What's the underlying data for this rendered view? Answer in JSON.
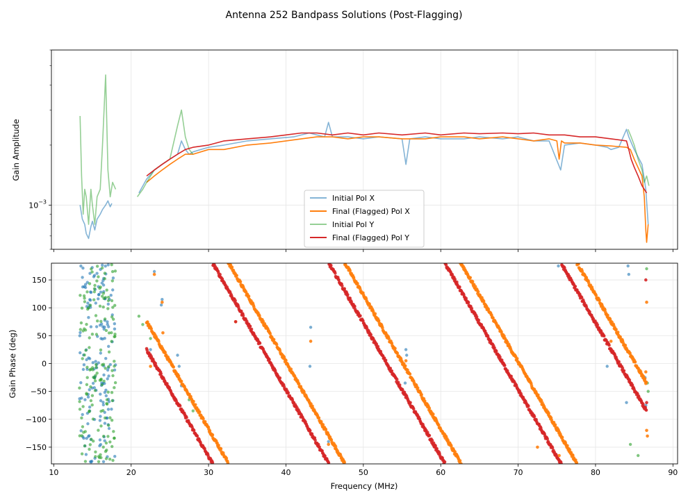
{
  "figure": {
    "title": "Antenna 252 Bandpass Solutions (Post-Flagging)"
  },
  "colors": {
    "initial_x": "#1f77b4",
    "final_x": "#ff7f0e",
    "initial_y": "#2ca02c",
    "final_y": "#d62728",
    "grid": "#e6e6e6"
  },
  "chart_data": [
    {
      "type": "line",
      "panel": "top",
      "ylabel": "Gain Amplitude",
      "yscale": "log",
      "ylim": [
        0.0006,
        0.006
      ],
      "xlim": [
        9.7,
        90.6
      ],
      "grid": true,
      "y_ticks": [
        {
          "value": 0.001,
          "base": "10",
          "exp": "−3"
        }
      ],
      "legend_position": "lower-center",
      "legend": [
        "Initial Pol X",
        "Final (Flagged) Pol X",
        "Initial Pol Y",
        "Final (Flagged) Pol Y"
      ],
      "series": [
        {
          "name": "Initial Pol X",
          "color": "#1f77b4",
          "opacity": 0.55,
          "segments": [
            {
              "x": [
                13.4,
                13.7,
                14.0,
                14.2,
                14.5,
                14.8,
                15.0,
                15.3,
                15.6,
                16.0,
                16.3,
                16.7,
                17.0,
                17.3,
                17.5
              ],
              "y": [
                0.001,
                0.00085,
                0.0008,
                0.00072,
                0.00068,
                0.00078,
                0.00083,
                0.00075,
                0.00085,
                0.0009,
                0.00095,
                0.001,
                0.00105,
                0.00098,
                0.00102
              ]
            },
            {
              "x": [
                21.0,
                22,
                23,
                24,
                25,
                26,
                26.5,
                27,
                27.5,
                28,
                29,
                30,
                32,
                35,
                38,
                41,
                43,
                45,
                45.5,
                46,
                48,
                50,
                52,
                55,
                55.5,
                56,
                58,
                60,
                63,
                65,
                68,
                70,
                72,
                74,
                75.5,
                76,
                78,
                80,
                81.5,
                82,
                83,
                84.0,
                84.3,
                85,
                86,
                86.5,
                86.8
              ],
              "y": [
                0.00115,
                0.00135,
                0.0015,
                0.0016,
                0.0017,
                0.0018,
                0.0021,
                0.0019,
                0.0018,
                0.00185,
                0.0019,
                0.00195,
                0.002,
                0.0021,
                0.00215,
                0.0022,
                0.0023,
                0.0022,
                0.0026,
                0.0022,
                0.0022,
                0.00215,
                0.0022,
                0.00215,
                0.0016,
                0.00215,
                0.0022,
                0.00215,
                0.00215,
                0.0022,
                0.00215,
                0.0022,
                0.0021,
                0.0021,
                0.0015,
                0.002,
                0.00205,
                0.002,
                0.00195,
                0.0019,
                0.00195,
                0.0024,
                0.0022,
                0.0019,
                0.0016,
                0.0012,
                0.0008
              ]
            }
          ]
        },
        {
          "name": "Final (Flagged) Pol X",
          "color": "#ff7f0e",
          "opacity": 1.0,
          "segments": [
            {
              "x": [
                22,
                23,
                24,
                25,
                26,
                27,
                28,
                30,
                32,
                35,
                38,
                40,
                42,
                44,
                46,
                48,
                50,
                52,
                55,
                58,
                60,
                63,
                65,
                68,
                70,
                72,
                74,
                75,
                75.3,
                75.6,
                76,
                78,
                80,
                82,
                84,
                84.5,
                85,
                86,
                86.3,
                86.5,
                86.6,
                86.8
              ],
              "y": [
                0.0013,
                0.0014,
                0.0015,
                0.0016,
                0.0017,
                0.0018,
                0.0018,
                0.0019,
                0.0019,
                0.002,
                0.00205,
                0.0021,
                0.00215,
                0.0022,
                0.0022,
                0.00215,
                0.0022,
                0.0022,
                0.00215,
                0.00215,
                0.0022,
                0.0022,
                0.00215,
                0.0022,
                0.00215,
                0.0021,
                0.00215,
                0.0021,
                0.0017,
                0.0021,
                0.00205,
                0.00205,
                0.002,
                0.00198,
                0.00195,
                0.0019,
                0.0017,
                0.0014,
                0.0011,
                0.00075,
                0.00065,
                0.0008
              ]
            }
          ]
        },
        {
          "name": "Initial Pol Y",
          "color": "#2ca02c",
          "opacity": 0.5,
          "segments": [
            {
              "x": [
                13.4,
                13.6,
                13.8,
                14.0,
                14.2,
                14.5,
                14.8,
                15.0,
                15.3,
                15.6,
                16.0,
                16.3,
                16.7,
                17.0,
                17.3,
                17.6,
                18.0
              ],
              "y": [
                0.0028,
                0.0014,
                0.0009,
                0.0012,
                0.0011,
                0.0008,
                0.0012,
                0.001,
                0.0008,
                0.0011,
                0.0012,
                0.002,
                0.0045,
                0.0015,
                0.0011,
                0.0013,
                0.0012
              ]
            },
            {
              "x": [
                20.8,
                21.5,
                22,
                23,
                24,
                25,
                26,
                26.5,
                27,
                27.5,
                28
              ],
              "y": [
                0.0011,
                0.0012,
                0.0013,
                0.0015,
                0.0016,
                0.0017,
                0.0025,
                0.003,
                0.0022,
                0.0019,
                0.0018
              ]
            },
            {
              "x": [
                84.2,
                84.6,
                85,
                85.5,
                86,
                86.3,
                86.6,
                86.9
              ],
              "y": [
                0.0024,
                0.0022,
                0.002,
                0.0017,
                0.0015,
                0.0013,
                0.0014,
                0.00125
              ]
            }
          ]
        },
        {
          "name": "Final (Flagged) Pol Y",
          "color": "#d62728",
          "opacity": 1.0,
          "segments": [
            {
              "x": [
                22,
                23,
                24,
                25,
                26,
                27,
                28,
                30,
                32,
                35,
                38,
                40,
                42,
                44,
                46,
                48,
                50,
                52,
                55,
                58,
                60,
                63,
                65,
                68,
                70,
                72,
                74,
                76,
                78,
                80,
                82,
                84,
                84.3,
                84.6,
                85,
                85.5,
                86,
                86.3,
                86.6
              ],
              "y": [
                0.0014,
                0.0015,
                0.0016,
                0.0017,
                0.0018,
                0.0019,
                0.00195,
                0.002,
                0.0021,
                0.00215,
                0.0022,
                0.00225,
                0.0023,
                0.0023,
                0.00225,
                0.0023,
                0.00225,
                0.0023,
                0.00225,
                0.0023,
                0.00225,
                0.0023,
                0.00228,
                0.0023,
                0.00228,
                0.0023,
                0.00225,
                0.00225,
                0.0022,
                0.0022,
                0.00215,
                0.0021,
                0.0019,
                0.0017,
                0.00155,
                0.0014,
                0.00125,
                0.0012,
                0.00115
              ]
            }
          ]
        }
      ]
    },
    {
      "type": "scatter",
      "panel": "bottom",
      "xlabel": "Frequency (MHz)",
      "ylabel": "Gain Phase (deg)",
      "xlim": [
        9.7,
        90.6
      ],
      "ylim": [
        -180,
        180
      ],
      "grid": true,
      "x_ticks": [
        10,
        20,
        30,
        40,
        50,
        60,
        70,
        80,
        90
      ],
      "y_ticks": [
        -150,
        -100,
        -50,
        0,
        50,
        100,
        150
      ],
      "series": [
        {
          "name": "Initial Pol X",
          "color": "#1f77b4",
          "kind": "noise",
          "x_range": [
            13.3,
            18.0
          ],
          "count": 160,
          "extra": [
            [
              23.0,
              165
            ],
            [
              24.0,
              115
            ],
            [
              23.9,
              105
            ],
            [
              22.5,
              25
            ],
            [
              26.0,
              15
            ],
            [
              26.2,
              -5
            ],
            [
              26.5,
              -40
            ],
            [
              43.2,
              65
            ],
            [
              43.1,
              -5
            ],
            [
              45.5,
              -140
            ],
            [
              55.5,
              25
            ],
            [
              55.6,
              15
            ],
            [
              55.4,
              -35
            ],
            [
              75.2,
              175
            ],
            [
              81.5,
              -5
            ],
            [
              84.2,
              175
            ],
            [
              84.3,
              160
            ],
            [
              84.0,
              -70
            ],
            [
              86.4,
              -25
            ],
            [
              86.5,
              -75
            ]
          ]
        },
        {
          "name": "Initial Pol Y",
          "color": "#2ca02c",
          "kind": "noise",
          "x_range": [
            13.3,
            18.0
          ],
          "count": 160,
          "extra": [
            [
              21.0,
              85
            ],
            [
              21.5,
              70
            ],
            [
              22.5,
              45
            ],
            [
              26.0,
              -20
            ],
            [
              27.5,
              -65
            ],
            [
              28.0,
              -85
            ],
            [
              84.5,
              -145
            ],
            [
              85.5,
              -165
            ],
            [
              86.6,
              170
            ],
            [
              86.7,
              -35
            ],
            [
              86.8,
              -50
            ]
          ]
        },
        {
          "name": "Final (Flagged) Pol X",
          "color": "#ff7f0e",
          "kind": "wrapped",
          "x_range": [
            22.0,
            86.6
          ],
          "x0": 22.0,
          "phase0": 75,
          "slope": -24.0,
          "extra": [
            [
              23.0,
              160
            ],
            [
              24.0,
              110
            ],
            [
              24.1,
              55
            ],
            [
              22.5,
              -5
            ],
            [
              33.5,
              75
            ],
            [
              43.2,
              40
            ],
            [
              45.5,
              -145
            ],
            [
              55.5,
              5
            ],
            [
              72.5,
              -150
            ],
            [
              75.3,
              -165
            ],
            [
              82.0,
              40
            ],
            [
              86.5,
              -15
            ],
            [
              86.6,
              -120
            ],
            [
              86.7,
              -130
            ],
            [
              86.6,
              110
            ]
          ]
        },
        {
          "name": "Final (Flagged) Pol Y",
          "color": "#d62728",
          "kind": "wrapped",
          "x_range": [
            22.0,
            86.6
          ],
          "x0": 22.0,
          "phase0": 25,
          "slope": -24.0,
          "extra": [
            [
              33.5,
              75
            ],
            [
              86.5,
              150
            ],
            [
              86.6,
              -70
            ]
          ]
        }
      ]
    }
  ]
}
